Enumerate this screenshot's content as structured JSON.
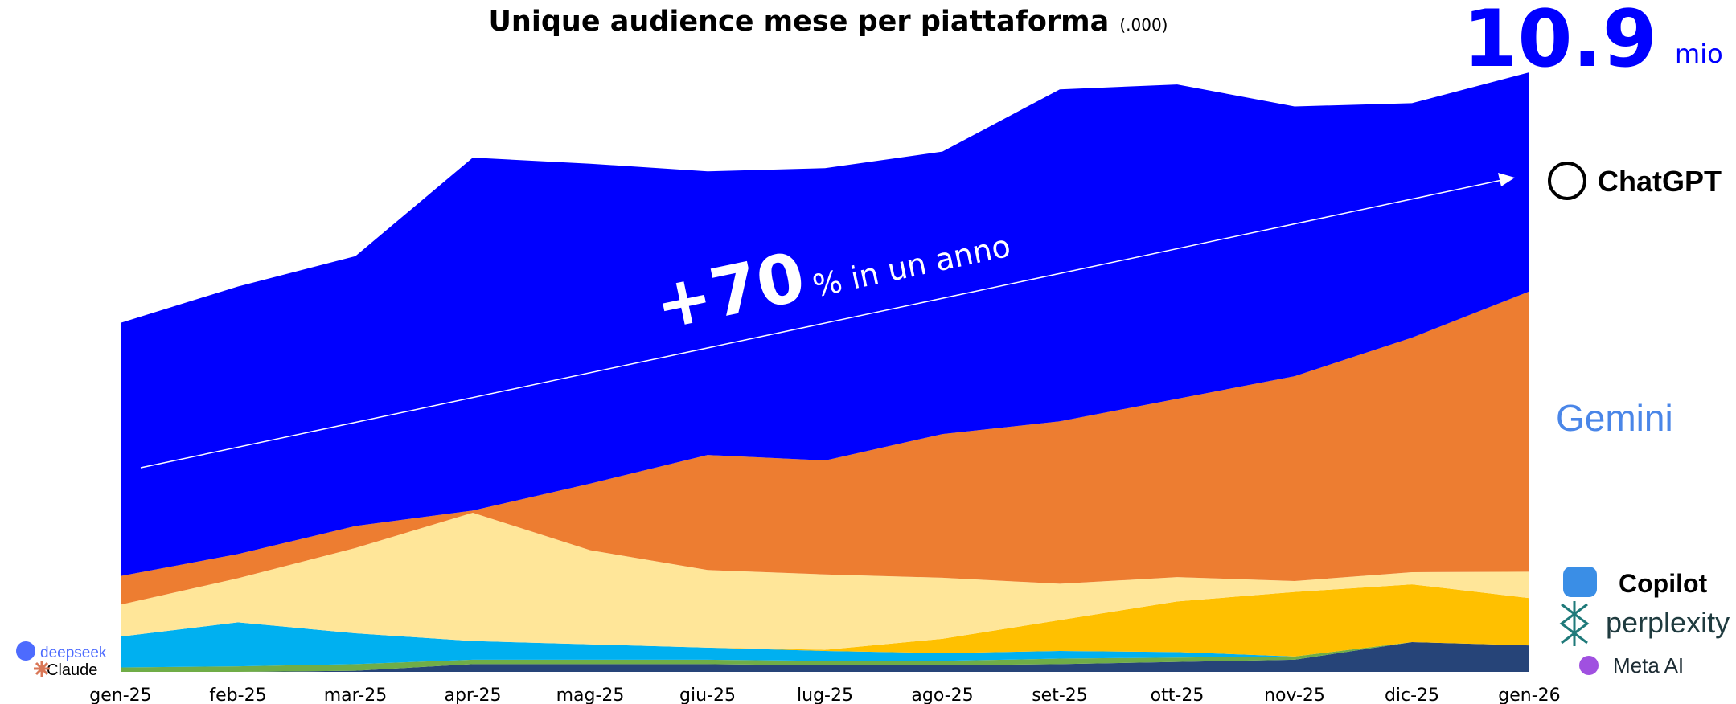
{
  "chart_data": {
    "type": "stacked_area",
    "title": "Unique audience mese per piattaforma",
    "subtitle": "(.000)",
    "headline": {
      "value": "10.9",
      "unit": "mio"
    },
    "annotation": {
      "main": "+70",
      "rest": "% in un anno"
    },
    "categories": [
      "gen-25",
      "feb-25",
      "mar-25",
      "apr-25",
      "mag-25",
      "giu-25",
      "lug-25",
      "ago-25",
      "set-25",
      "ott-25",
      "nov-25",
      "dic-25",
      "gen-26"
    ],
    "series": [
      {
        "name": "Meta AI",
        "color": "#264478",
        "values": [
          0,
          0,
          20,
          140,
          140,
          140,
          120,
          120,
          140,
          180,
          220,
          540,
          480
        ]
      },
      {
        "name": "Claude",
        "color": "#70ad47",
        "values": [
          80,
          100,
          120,
          80,
          80,
          80,
          80,
          80,
          100,
          80,
          60,
          0,
          0
        ]
      },
      {
        "name": "deepseek",
        "color": "#00b0f0",
        "values": [
          560,
          800,
          560,
          340,
          280,
          220,
          180,
          140,
          140,
          100,
          0,
          0,
          0
        ]
      },
      {
        "name": "perplexity",
        "color": "#ffc000",
        "values": [
          0,
          0,
          0,
          0,
          0,
          0,
          20,
          260,
          560,
          920,
          1170,
          1050,
          860
        ]
      },
      {
        "name": "Copilot",
        "color": "#ffe699",
        "values": [
          580,
          800,
          1550,
          2330,
          1710,
          1410,
          1370,
          1110,
          660,
          440,
          200,
          220,
          480
        ]
      },
      {
        "name": "Gemini",
        "color": "#ed7d31",
        "values": [
          520,
          440,
          400,
          40,
          1210,
          2090,
          2070,
          2610,
          2950,
          3240,
          3720,
          4260,
          5090
        ]
      },
      {
        "name": "ChatGPT",
        "color": "#0000ff",
        "values": [
          4600,
          4860,
          4900,
          6410,
          5810,
          5150,
          5310,
          5130,
          6030,
          5710,
          4900,
          4260,
          3980
        ]
      }
    ]
  }
}
